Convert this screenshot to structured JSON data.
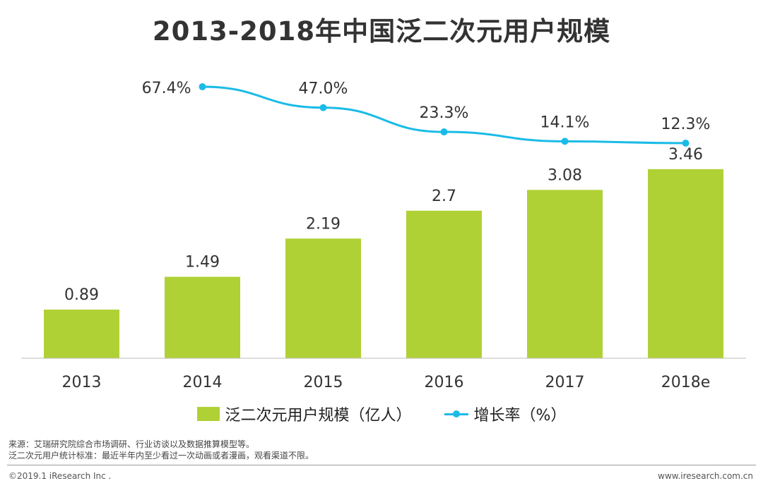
{
  "title": "2013-2018年中国泛二次元用户规模",
  "legend": {
    "bar_label": "泛二次元用户规模（亿人）",
    "line_label": "增长率（%）"
  },
  "notes": {
    "line1": "来源：艾瑞研究院综合市场调研、行业访谈以及数据推算模型等。",
    "line2": "泛二次元用户统计标准：最近半年内至少看过一次动画或者漫画，观看渠道不限。"
  },
  "footer": {
    "copyright": "©2019.1 iResearch Inc .",
    "website": "www.iresearch.com.cn"
  },
  "colors": {
    "bar": "#b0d135",
    "line": "#1bbbe7"
  },
  "chart_data": {
    "type": "bar",
    "categories": [
      "2013",
      "2014",
      "2015",
      "2016",
      "2017",
      "2018e"
    ],
    "series": [
      {
        "name": "泛二次元用户规模（亿人）",
        "type": "bar",
        "values": [
          0.89,
          1.49,
          2.19,
          2.7,
          3.08,
          3.46
        ],
        "labels": [
          "0.89",
          "1.49",
          "2.19",
          "2.7",
          "3.08",
          "3.46"
        ]
      },
      {
        "name": "增长率（%）",
        "type": "line",
        "x": [
          "2014",
          "2015",
          "2016",
          "2017",
          "2018e"
        ],
        "values": [
          67.4,
          47.0,
          23.3,
          14.1,
          12.3
        ],
        "labels": [
          "67.4%",
          "47.0%",
          "23.3%",
          "14.1%",
          "12.3%"
        ]
      }
    ],
    "grid": false
  }
}
